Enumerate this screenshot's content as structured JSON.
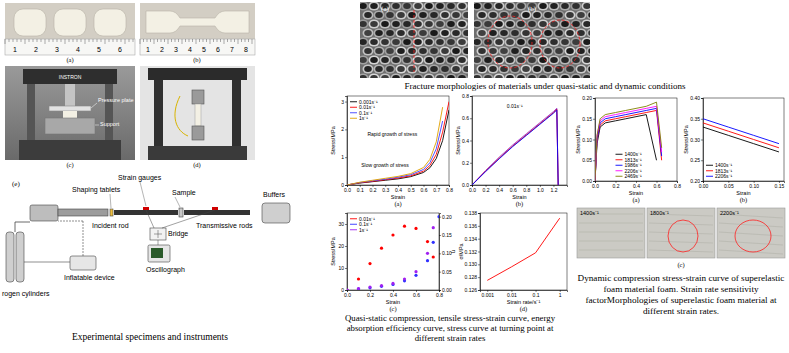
{
  "instruments": {
    "photo_labels": [
      "(a)",
      "(b)",
      "(c)",
      "(d)"
    ],
    "ruler_a": [
      "1",
      "2",
      "3",
      "4",
      "5",
      "6"
    ],
    "ruler_b": [
      "1",
      "2",
      "3",
      "4",
      "5",
      "6",
      "7",
      "8"
    ],
    "brand": "INSTRON",
    "callouts": [
      "Pressure plate",
      "Support"
    ],
    "schematic_label": "(e)",
    "schematic": [
      "Shaping tablets",
      "Strain gauges",
      "Sample",
      "Incident rod",
      "Bridge",
      "Transmissive rods",
      "Buffers",
      "rogen cylinders",
      "Inflatable device",
      "Oscillograph"
    ],
    "caption": "Experimental specimens and instruments"
  },
  "fracture": {
    "labels": [
      "(a)",
      "(b)"
    ],
    "caption": "Fracture morphologies of materials under quasi-static and dynamic conditions"
  },
  "quasi_static": {
    "caption": "Quasi-static compression, tensile stress-strain curve, energy absorption efficiency curve, stress curve at turning point at different strain rates"
  },
  "dynamic": {
    "photo_labels": [
      "1400s⁻¹",
      "1800s⁻¹",
      "2200s⁻¹"
    ],
    "panel_label": "(c)",
    "caption": "Dynamic compression stress-strain curve of superelastic foam material foam. Strain rate sensitivity factorMorphologies of superelastic foam material at different strain rates."
  },
  "chart_data": [
    {
      "type": "line",
      "panel_label": "(a)",
      "x_label": "Strain",
      "y_label": "Stress/MPa",
      "annotations": [
        "Slow growth of stress",
        "Rapid growth of stress"
      ],
      "x": [
        0,
        0.1,
        0.2,
        0.3,
        0.4,
        0.5,
        0.6,
        0.65,
        0.7,
        0.75,
        0.8
      ],
      "series": [
        {
          "name": "0.001s⁻¹",
          "color": "#000000",
          "values": [
            0,
            0.07,
            0.12,
            0.17,
            0.22,
            0.3,
            0.45,
            0.62,
            0.95,
            1.6,
            2.7
          ]
        },
        {
          "name": "0.01s⁻¹",
          "color": "#ff0000",
          "values": [
            0,
            0.08,
            0.13,
            0.19,
            0.25,
            0.33,
            0.5,
            0.7,
            1.1,
            1.9,
            3.0
          ]
        },
        {
          "name": "0.1s⁻¹",
          "color": "#4040ff",
          "values": [
            0,
            0.09,
            0.15,
            0.21,
            0.28,
            0.37,
            0.56,
            0.8,
            1.3,
            2.3,
            null
          ]
        },
        {
          "name": "1s⁻¹",
          "color": "#e0a000",
          "values": [
            0,
            0.1,
            0.17,
            0.24,
            0.31,
            0.41,
            0.63,
            0.92,
            1.55,
            2.8,
            null
          ]
        }
      ],
      "xlim": [
        0,
        0.8
      ],
      "xticks": [
        {
          "value": 0,
          "label": "0.0"
        },
        0.1,
        0.2,
        0.3,
        0.4,
        0.5,
        0.6,
        0.7,
        0.8
      ],
      "ylim": [
        0,
        3.2
      ],
      "yticks": [
        0,
        1,
        2,
        3
      ],
      "legend": "top-left"
    },
    {
      "type": "line",
      "panel_label": "(b)",
      "x_label": "Strain",
      "y_label": "Stress/MPa",
      "annotations": [
        "0.01s⁻¹"
      ],
      "x": [
        0,
        0.2,
        0.4,
        0.6,
        0.8,
        1.0,
        1.2,
        1.25,
        1.27
      ],
      "series": [
        {
          "color": "#9932cc",
          "values": [
            0,
            0.13,
            0.25,
            0.36,
            0.46,
            0.56,
            0.66,
            0.69,
            0
          ]
        },
        {
          "color": "#ff0000",
          "values": [
            0,
            0.125,
            0.24,
            0.35,
            0.45,
            0.55,
            0.65,
            0.68,
            0
          ]
        },
        {
          "color": "#0000ff",
          "values": [
            0,
            0.12,
            0.235,
            0.345,
            0.445,
            0.545,
            0.645,
            0.675,
            0
          ]
        }
      ],
      "xlim": [
        0,
        1.4
      ],
      "xticks": [
        {
          "value": 0,
          "label": "0.0"
        },
        0.2,
        0.4,
        0.6,
        0.8,
        {
          "value": 1,
          "label": "1.0"
        },
        1.2
      ],
      "ylim": [
        0,
        0.8
      ],
      "yticks": [
        {
          "value": 0,
          "label": "0.0"
        },
        0.2,
        0.4,
        0.6,
        0.8
      ]
    },
    {
      "type": "scatter",
      "marker": "circle",
      "panel_label": "(c)",
      "x_label": "Strain",
      "y_label": "Stress/MPa",
      "y2_label": "η",
      "x": [
        0,
        0.1,
        0.2,
        0.3,
        0.4,
        0.5,
        0.6,
        0.7,
        0.75,
        0.8
      ],
      "series": [
        {
          "name": "0.01s⁻¹",
          "color": "#ff0000",
          "values": [
            0,
            5,
            12,
            19,
            25,
            29,
            28,
            22,
            15,
            null
          ]
        },
        {
          "name": "0.1s⁻¹",
          "color": "#3030ff",
          "axis": "y2",
          "values": [
            0,
            0.003,
            0.006,
            0.01,
            0.015,
            0.025,
            0.04,
            0.08,
            0.13,
            0.2
          ]
        },
        {
          "name": "1s⁻¹",
          "color": "#a020f0",
          "axis": "y2",
          "values": [
            0,
            0.004,
            0.008,
            0.012,
            0.018,
            0.03,
            0.05,
            0.1,
            0.17,
            null
          ]
        }
      ],
      "xlim": [
        0,
        0.8
      ],
      "xticks": [
        {
          "value": 0,
          "label": "0.0"
        },
        0.2,
        0.4,
        0.6,
        0.8
      ],
      "ylim": [
        0,
        35
      ],
      "yticks": [
        0,
        10,
        20,
        30
      ],
      "y2lim": [
        0,
        0.21
      ],
      "y2ticks": [
        {
          "value": 0,
          "label": "0.00"
        },
        0.05,
        {
          "value": 0.1,
          "label": "0.10"
        },
        0.15,
        {
          "value": 0.2,
          "label": "0.20"
        }
      ],
      "legend": "top-left"
    },
    {
      "type": "line",
      "log": "x",
      "panel_label": "(d)",
      "x_label": "Strain rate/s⁻¹",
      "y_label": "σ/MPa",
      "x": [
        0.001,
        0.01,
        0.1,
        1
      ],
      "series": [
        {
          "color": "#ff0000",
          "values": [
            0.1275,
            0.1296,
            0.1318,
            0.1372
          ]
        }
      ],
      "xlim": [
        0.0005,
        2
      ],
      "xticks": [
        0.001,
        0.01,
        0.1,
        1
      ],
      "ylim": [
        0.126,
        0.138
      ],
      "yticks": [
        0.126,
        0.128,
        {
          "value": 0.13,
          "label": "0.130"
        },
        0.132,
        0.134,
        0.136,
        0.138
      ]
    },
    {
      "type": "line",
      "panel_label": "(a)",
      "x_label": "Strain",
      "y_label": "Stress/MPa",
      "x": [
        0,
        0.02,
        0.05,
        0.1,
        0.2,
        0.3,
        0.4,
        0.5,
        0.6,
        0.65
      ],
      "series": [
        {
          "name": "1400s⁻¹",
          "color": "#000000",
          "values": [
            0,
            0.09,
            0.13,
            0.14,
            0.145,
            0.15,
            0.155,
            0.16,
            0.05,
            null
          ]
        },
        {
          "name": "1813s⁻¹",
          "color": "#ff0000",
          "values": [
            0,
            0.1,
            0.135,
            0.145,
            0.15,
            0.155,
            0.16,
            0.165,
            0.17,
            0.05
          ]
        },
        {
          "name": "1986s⁻¹",
          "color": "#0000ff",
          "values": [
            0,
            0.1,
            0.14,
            0.15,
            0.155,
            0.16,
            0.165,
            0.17,
            0.175,
            0.06
          ]
        },
        {
          "name": "2206s⁻¹",
          "color": "#ff00ff",
          "values": [
            0,
            0.11,
            0.145,
            0.155,
            0.16,
            0.165,
            0.17,
            0.175,
            0.18,
            0.07
          ]
        },
        {
          "name": "2469s⁻¹",
          "color": "#808000",
          "values": [
            0,
            0.11,
            0.15,
            0.16,
            0.165,
            0.17,
            0.175,
            0.18,
            0.19,
            0.08
          ]
        }
      ],
      "xlim": [
        0,
        0.8
      ],
      "xticks": [
        {
          "value": 0,
          "label": "0.0"
        },
        0.2,
        0.4,
        0.6,
        0.8
      ],
      "ylim": [
        0,
        0.2
      ],
      "yticks": [
        {
          "value": 0,
          "label": "0.00"
        },
        0.05,
        {
          "value": 0.1,
          "label": "0.10"
        },
        0.15,
        {
          "value": 0.2,
          "label": "0.20"
        }
      ],
      "legend": "bottom"
    },
    {
      "type": "line",
      "panel_label": "(b)",
      "x_label": "Strain",
      "y_label": "Stress/MPa",
      "x": [
        0,
        0.05,
        0.1,
        0.15
      ],
      "series": [
        {
          "name": "1400s⁻¹",
          "color": "#000000",
          "values": [
            0.33,
            0.31,
            0.29,
            0.27
          ]
        },
        {
          "name": "1813s⁻¹",
          "color": "#ff0000",
          "values": [
            0.34,
            0.32,
            0.3,
            0.28
          ]
        },
        {
          "name": "2206s⁻¹",
          "color": "#0000ff",
          "values": [
            0.35,
            0.33,
            0.31,
            0.29
          ]
        }
      ],
      "xlim": [
        0,
        0.16
      ],
      "xticks": [
        {
          "value": 0,
          "label": "0.00"
        },
        0.05,
        {
          "value": 0.1,
          "label": "0.10"
        },
        0.15
      ],
      "ylim": [
        0.2,
        0.4
      ],
      "yticks": [
        {
          "value": 0.2,
          "label": "0.20"
        },
        0.25,
        {
          "value": 0.3,
          "label": "0.30"
        },
        0.35,
        {
          "value": 0.4,
          "label": "0.40"
        }
      ],
      "legend": "bottom-left"
    }
  ]
}
